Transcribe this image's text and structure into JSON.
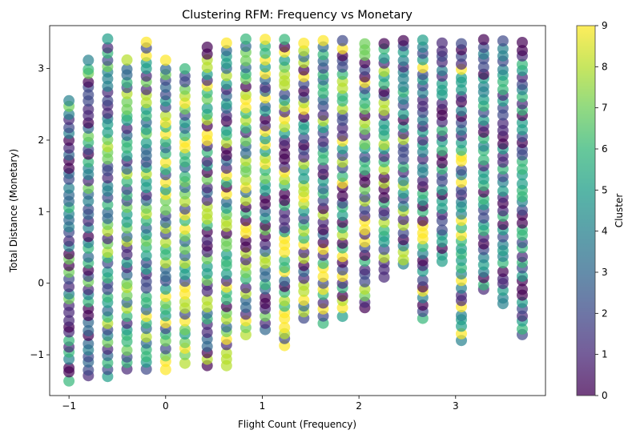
{
  "chart_data": {
    "type": "scatter",
    "title": "Clustering RFM: Frequency vs Monetary",
    "xlabel": "Flight Count (Frequency)",
    "ylabel": "Total Distance (Monetary)",
    "xlim": [
      -1.2,
      3.93
    ],
    "ylim": [
      -1.57,
      3.6
    ],
    "xticks": [
      -1,
      0,
      1,
      2,
      3
    ],
    "yticks": [
      -1,
      0,
      1,
      2,
      3
    ],
    "grid": false,
    "colormap": "viridis",
    "marker_alpha": 0.7,
    "colorbar": {
      "label": "Cluster",
      "min": 0,
      "max": 9,
      "ticks": [
        0,
        1,
        2,
        3,
        4,
        5,
        6,
        7,
        8,
        9
      ]
    },
    "x_columns": [
      -1.0,
      -0.8,
      -0.6,
      -0.4,
      -0.2,
      0.0,
      0.2,
      0.43,
      0.63,
      0.83,
      1.03,
      1.23,
      1.43,
      1.63,
      1.83,
      2.06,
      2.26,
      2.46,
      2.66,
      2.86,
      3.06,
      3.29,
      3.49,
      3.69
    ],
    "column_ranges": [
      {
        "x": -1.0,
        "y_min": -1.35,
        "y_max": 2.55,
        "clusters": [
          0,
          1,
          2,
          3,
          4,
          6,
          7
        ]
      },
      {
        "x": -0.8,
        "y_min": -1.3,
        "y_max": 3.1,
        "clusters": [
          0,
          1,
          2,
          3,
          4,
          6,
          7
        ]
      },
      {
        "x": -0.6,
        "y_min": -1.3,
        "y_max": 3.4,
        "clusters": [
          1,
          2,
          3,
          4,
          5,
          6,
          7,
          8
        ]
      },
      {
        "x": -0.4,
        "y_min": -1.2,
        "y_max": 3.1,
        "clusters": [
          1,
          2,
          3,
          5,
          6,
          7,
          8
        ]
      },
      {
        "x": -0.2,
        "y_min": -1.2,
        "y_max": 3.38,
        "clusters": [
          1,
          2,
          3,
          5,
          6,
          7,
          8,
          9
        ]
      },
      {
        "x": 0.0,
        "y_min": -1.2,
        "y_max": 3.1,
        "clusters": [
          1,
          2,
          3,
          5,
          6,
          7,
          8,
          9
        ]
      },
      {
        "x": 0.2,
        "y_min": -1.1,
        "y_max": 3.0,
        "clusters": [
          2,
          3,
          5,
          6,
          7,
          8,
          9
        ]
      },
      {
        "x": 0.43,
        "y_min": -1.15,
        "y_max": 3.3,
        "clusters": [
          0,
          1,
          3,
          5,
          6,
          7,
          8,
          9
        ]
      },
      {
        "x": 0.63,
        "y_min": -1.15,
        "y_max": 3.35,
        "clusters": [
          0,
          1,
          3,
          5,
          6,
          7,
          8,
          9
        ]
      },
      {
        "x": 0.83,
        "y_min": -0.7,
        "y_max": 3.4,
        "clusters": [
          0,
          1,
          3,
          6,
          7,
          8,
          9
        ]
      },
      {
        "x": 1.03,
        "y_min": -0.65,
        "y_max": 3.4,
        "clusters": [
          0,
          1,
          3,
          5,
          6,
          7,
          8,
          9
        ]
      },
      {
        "x": 1.23,
        "y_min": -0.88,
        "y_max": 3.4,
        "clusters": [
          0,
          1,
          2,
          3,
          5,
          6,
          7,
          8,
          9
        ]
      },
      {
        "x": 1.43,
        "y_min": -0.5,
        "y_max": 3.35,
        "clusters": [
          0,
          1,
          2,
          3,
          5,
          6,
          8,
          9
        ]
      },
      {
        "x": 1.63,
        "y_min": -0.55,
        "y_max": 3.4,
        "clusters": [
          0,
          1,
          2,
          3,
          5,
          6,
          8,
          9
        ]
      },
      {
        "x": 1.83,
        "y_min": -0.45,
        "y_max": 3.38,
        "clusters": [
          0,
          1,
          2,
          5,
          6,
          8,
          9
        ]
      },
      {
        "x": 2.06,
        "y_min": -0.35,
        "y_max": 3.35,
        "clusters": [
          0,
          1,
          2,
          5,
          6,
          7,
          8,
          9
        ]
      },
      {
        "x": 2.26,
        "y_min": 0.1,
        "y_max": 3.35,
        "clusters": [
          0,
          1,
          2,
          5,
          6,
          8
        ]
      },
      {
        "x": 2.46,
        "y_min": 0.25,
        "y_max": 3.4,
        "clusters": [
          0,
          1,
          2,
          4,
          5,
          6,
          8
        ]
      },
      {
        "x": 2.66,
        "y_min": -0.5,
        "y_max": 3.4,
        "clusters": [
          0,
          1,
          2,
          4,
          5,
          6,
          9
        ]
      },
      {
        "x": 2.86,
        "y_min": 0.3,
        "y_max": 3.35,
        "clusters": [
          0,
          1,
          2,
          4,
          5,
          6
        ]
      },
      {
        "x": 3.06,
        "y_min": -0.8,
        "y_max": 3.35,
        "clusters": [
          0,
          1,
          2,
          4,
          5,
          6,
          9
        ]
      },
      {
        "x": 3.29,
        "y_min": -0.1,
        "y_max": 3.4,
        "clusters": [
          0,
          1,
          2,
          4,
          5,
          6
        ]
      },
      {
        "x": 3.49,
        "y_min": -0.3,
        "y_max": 3.38,
        "clusters": [
          0,
          1,
          2,
          4,
          5,
          6
        ]
      },
      {
        "x": 3.69,
        "y_min": -0.72,
        "y_max": 3.35,
        "clusters": [
          0,
          1,
          2,
          4,
          5,
          6
        ]
      }
    ]
  }
}
